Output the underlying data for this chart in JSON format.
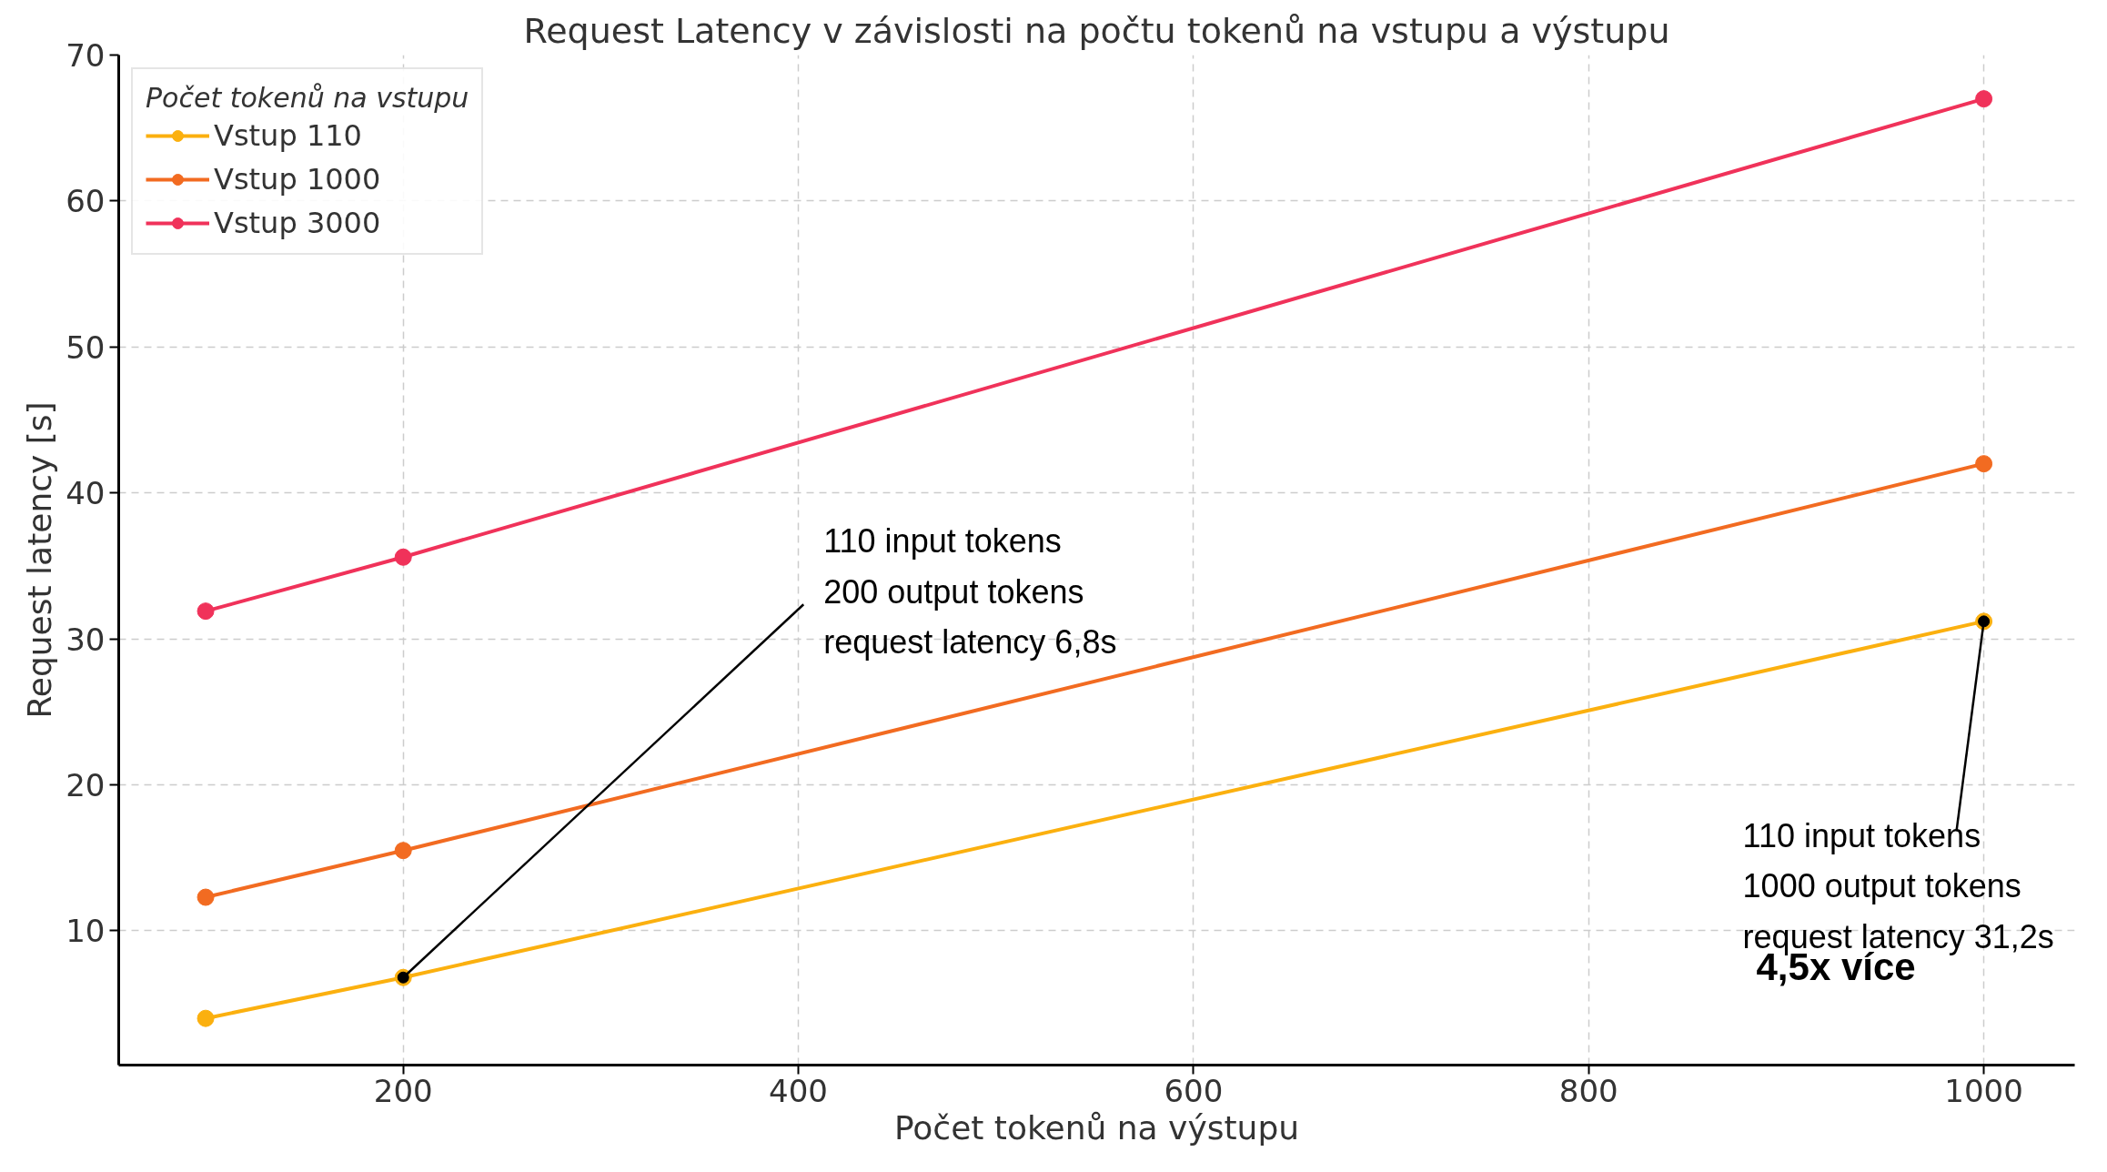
{
  "chart_data": {
    "type": "line",
    "title": "Request Latency v závislosti na počtu tokenů na vstupu a výstupu",
    "xlabel": "Počet tokenů na výstupu",
    "ylabel": "Request latency [s]",
    "legend_title": "Počet tokenů na vstupu",
    "x": [
      100,
      200,
      1000
    ],
    "series": [
      {
        "name": "Vstup 110",
        "color": "#fbb00f",
        "values": [
          4.0,
          6.8,
          31.2
        ]
      },
      {
        "name": "Vstup 1000",
        "color": "#f26b21",
        "values": [
          12.3,
          15.5,
          42.0
        ]
      },
      {
        "name": "Vstup 3000",
        "color": "#f0325a",
        "values": [
          31.9,
          35.6,
          67.0
        ]
      }
    ],
    "xlim": [
      56,
      1046
    ],
    "ylim": [
      0.8,
      70
    ],
    "xticks": [
      200,
      400,
      600,
      800,
      1000
    ],
    "yticks": [
      10,
      20,
      30,
      40,
      50,
      60,
      70
    ],
    "grid": true,
    "legend": "top left",
    "marker": "circle",
    "line_style": "solid",
    "annotations": [
      {
        "text": "110 input tokens\n200 output tokens\nrequest latency 6,8s",
        "x": 200,
        "y": 6.8
      },
      {
        "text": "110 input tokens\n1000 output tokens\nrequest latency 31,2s",
        "x": 1000,
        "y": 31.2
      },
      "4,5x více"
    ]
  }
}
